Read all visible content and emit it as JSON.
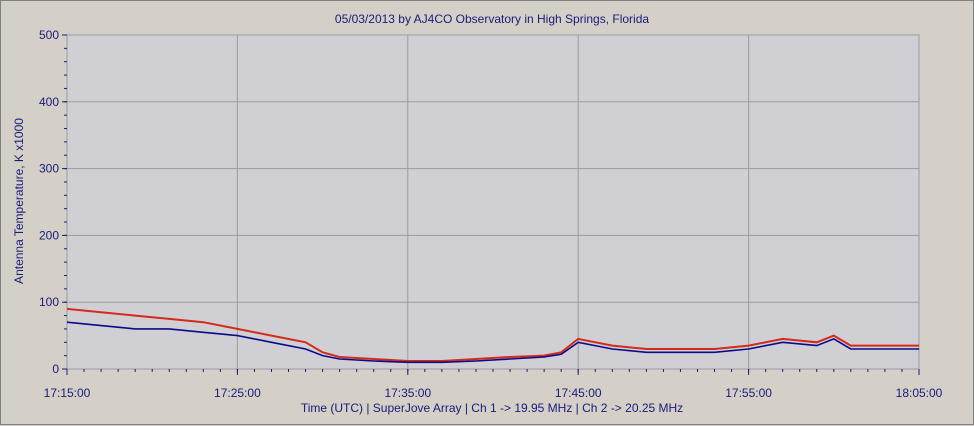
{
  "chart_data": {
    "type": "line",
    "title": "05/03/2013  by  AJ4CO Observatory  in  High Springs, Florida",
    "xlabel": "Time (UTC)  |  SuperJove Array  |  Ch 1 -> 19.95 MHz  |  Ch 2 -> 20.25 MHz",
    "ylabel": "Antenna Temperature, K x1000",
    "ylim": [
      0,
      500
    ],
    "xlim": [
      "17:15:00",
      "18:05:00"
    ],
    "y_ticks": [
      "0",
      "100",
      "200",
      "300",
      "400",
      "500"
    ],
    "x_ticks": [
      "17:15:00",
      "17:25:00",
      "17:35:00",
      "17:45:00",
      "17:55:00",
      "18:05:00"
    ],
    "grid": true,
    "series": [
      {
        "name": "Ch 1 -> 19.95 MHz",
        "color": "#d42a1a",
        "x": [
          "17:15:00",
          "17:17:00",
          "17:19:00",
          "17:21:00",
          "17:23:00",
          "17:25:00",
          "17:27:00",
          "17:29:00",
          "17:30:00",
          "17:31:00",
          "17:33:00",
          "17:35:00",
          "17:37:00",
          "17:39:00",
          "17:41:00",
          "17:43:00",
          "17:44:00",
          "17:45:00",
          "17:47:00",
          "17:49:00",
          "17:51:00",
          "17:53:00",
          "17:55:00",
          "17:57:00",
          "17:59:00",
          "18:00:00",
          "18:01:00",
          "18:03:00",
          "18:05:00"
        ],
        "y": [
          90,
          85,
          80,
          75,
          70,
          60,
          50,
          40,
          25,
          18,
          15,
          12,
          12,
          15,
          18,
          20,
          25,
          45,
          35,
          30,
          30,
          30,
          35,
          45,
          40,
          50,
          35,
          35,
          35
        ]
      },
      {
        "name": "Ch 2 -> 20.25 MHz",
        "color": "#0a0a8c",
        "x": [
          "17:15:00",
          "17:17:00",
          "17:19:00",
          "17:21:00",
          "17:23:00",
          "17:25:00",
          "17:27:00",
          "17:29:00",
          "17:30:00",
          "17:31:00",
          "17:33:00",
          "17:35:00",
          "17:37:00",
          "17:39:00",
          "17:41:00",
          "17:43:00",
          "17:44:00",
          "17:45:00",
          "17:47:00",
          "17:49:00",
          "17:51:00",
          "17:53:00",
          "17:55:00",
          "17:57:00",
          "17:59:00",
          "18:00:00",
          "18:01:00",
          "18:03:00",
          "18:05:00"
        ],
        "y": [
          70,
          65,
          60,
          60,
          55,
          50,
          40,
          30,
          20,
          15,
          12,
          10,
          10,
          12,
          15,
          18,
          22,
          40,
          30,
          25,
          25,
          25,
          30,
          40,
          35,
          45,
          30,
          30,
          30
        ]
      }
    ],
    "colors": {
      "plot_bg": "#d0d0d4",
      "grid": "#9a9aa0",
      "frame_bg": "#d4d0c8",
      "text": "#1a1a7a"
    }
  }
}
